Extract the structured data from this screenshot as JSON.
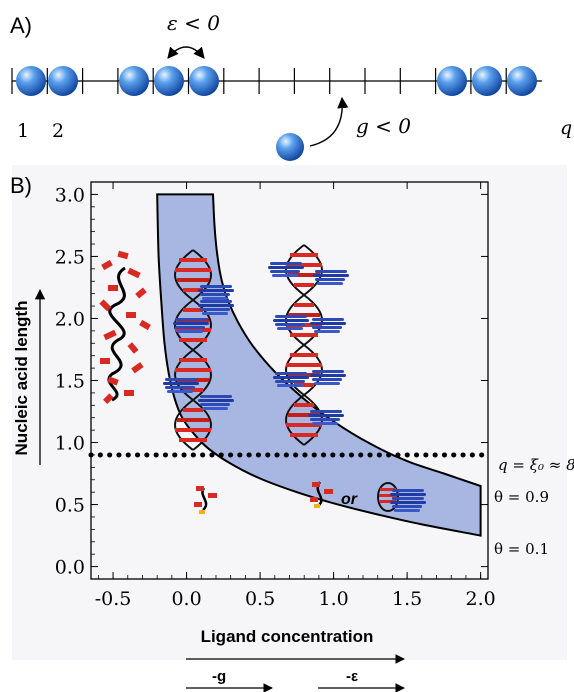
{
  "panel_a": {
    "label": "A)",
    "eps_label": "ε < 0",
    "g_label": "g < 0",
    "site_first": "1",
    "site_second": "2",
    "site_last": "q"
  },
  "panel_b": {
    "label": "B)",
    "ylabel": "Nucleic acid length",
    "xlabel": "Ligand concentration",
    "dotted_label": "q = ξ₀ ≈ 8",
    "theta_high": "θ = 0.9",
    "theta_low": "θ = 0.1",
    "or_label": "or",
    "arrow_g": "-g",
    "arrow_eps": "-ε"
  },
  "chart_data": {
    "type": "line",
    "xlabel": "Ligand concentration",
    "ylabel": "Nucleic acid length",
    "xlim": [
      -0.65,
      2.05
    ],
    "ylim": [
      -0.1,
      3.1
    ],
    "xticks": [
      "-0.5",
      "0.0",
      "0.5",
      "1.0",
      "1.5",
      "2.0"
    ],
    "yticks": [
      "0.0",
      "0.5",
      "1.0",
      "1.5",
      "2.0",
      "2.5",
      "3.0"
    ],
    "series": [
      {
        "name": "θ = 0.1",
        "x": [
          -0.2,
          -0.19,
          -0.17,
          -0.15,
          -0.12,
          -0.08,
          -0.03,
          0.05,
          0.15,
          0.3,
          0.5,
          0.75,
          1.0,
          1.3,
          1.6,
          2.0
        ],
        "y": [
          3.0,
          2.5,
          2.1,
          1.8,
          1.55,
          1.35,
          1.2,
          1.07,
          0.95,
          0.83,
          0.71,
          0.6,
          0.51,
          0.42,
          0.34,
          0.25
        ]
      },
      {
        "name": "θ = 0.9",
        "x": [
          0.18,
          0.19,
          0.21,
          0.24,
          0.28,
          0.35,
          0.45,
          0.6,
          0.8,
          1.0,
          1.25,
          1.5,
          1.75,
          2.0
        ],
        "y": [
          3.0,
          2.75,
          2.5,
          2.3,
          2.15,
          1.97,
          1.78,
          1.57,
          1.35,
          1.17,
          0.99,
          0.85,
          0.75,
          0.65
        ]
      }
    ],
    "hline": {
      "y": 0.9,
      "label": "q = ξ₀ ≈ 8"
    },
    "fill_between_series": true
  },
  "colors": {
    "band_fill": "#a7b7e2",
    "bead": "#2a6fd6",
    "helix_red": "#d82a22",
    "helix_blue": "#2c49b8"
  }
}
